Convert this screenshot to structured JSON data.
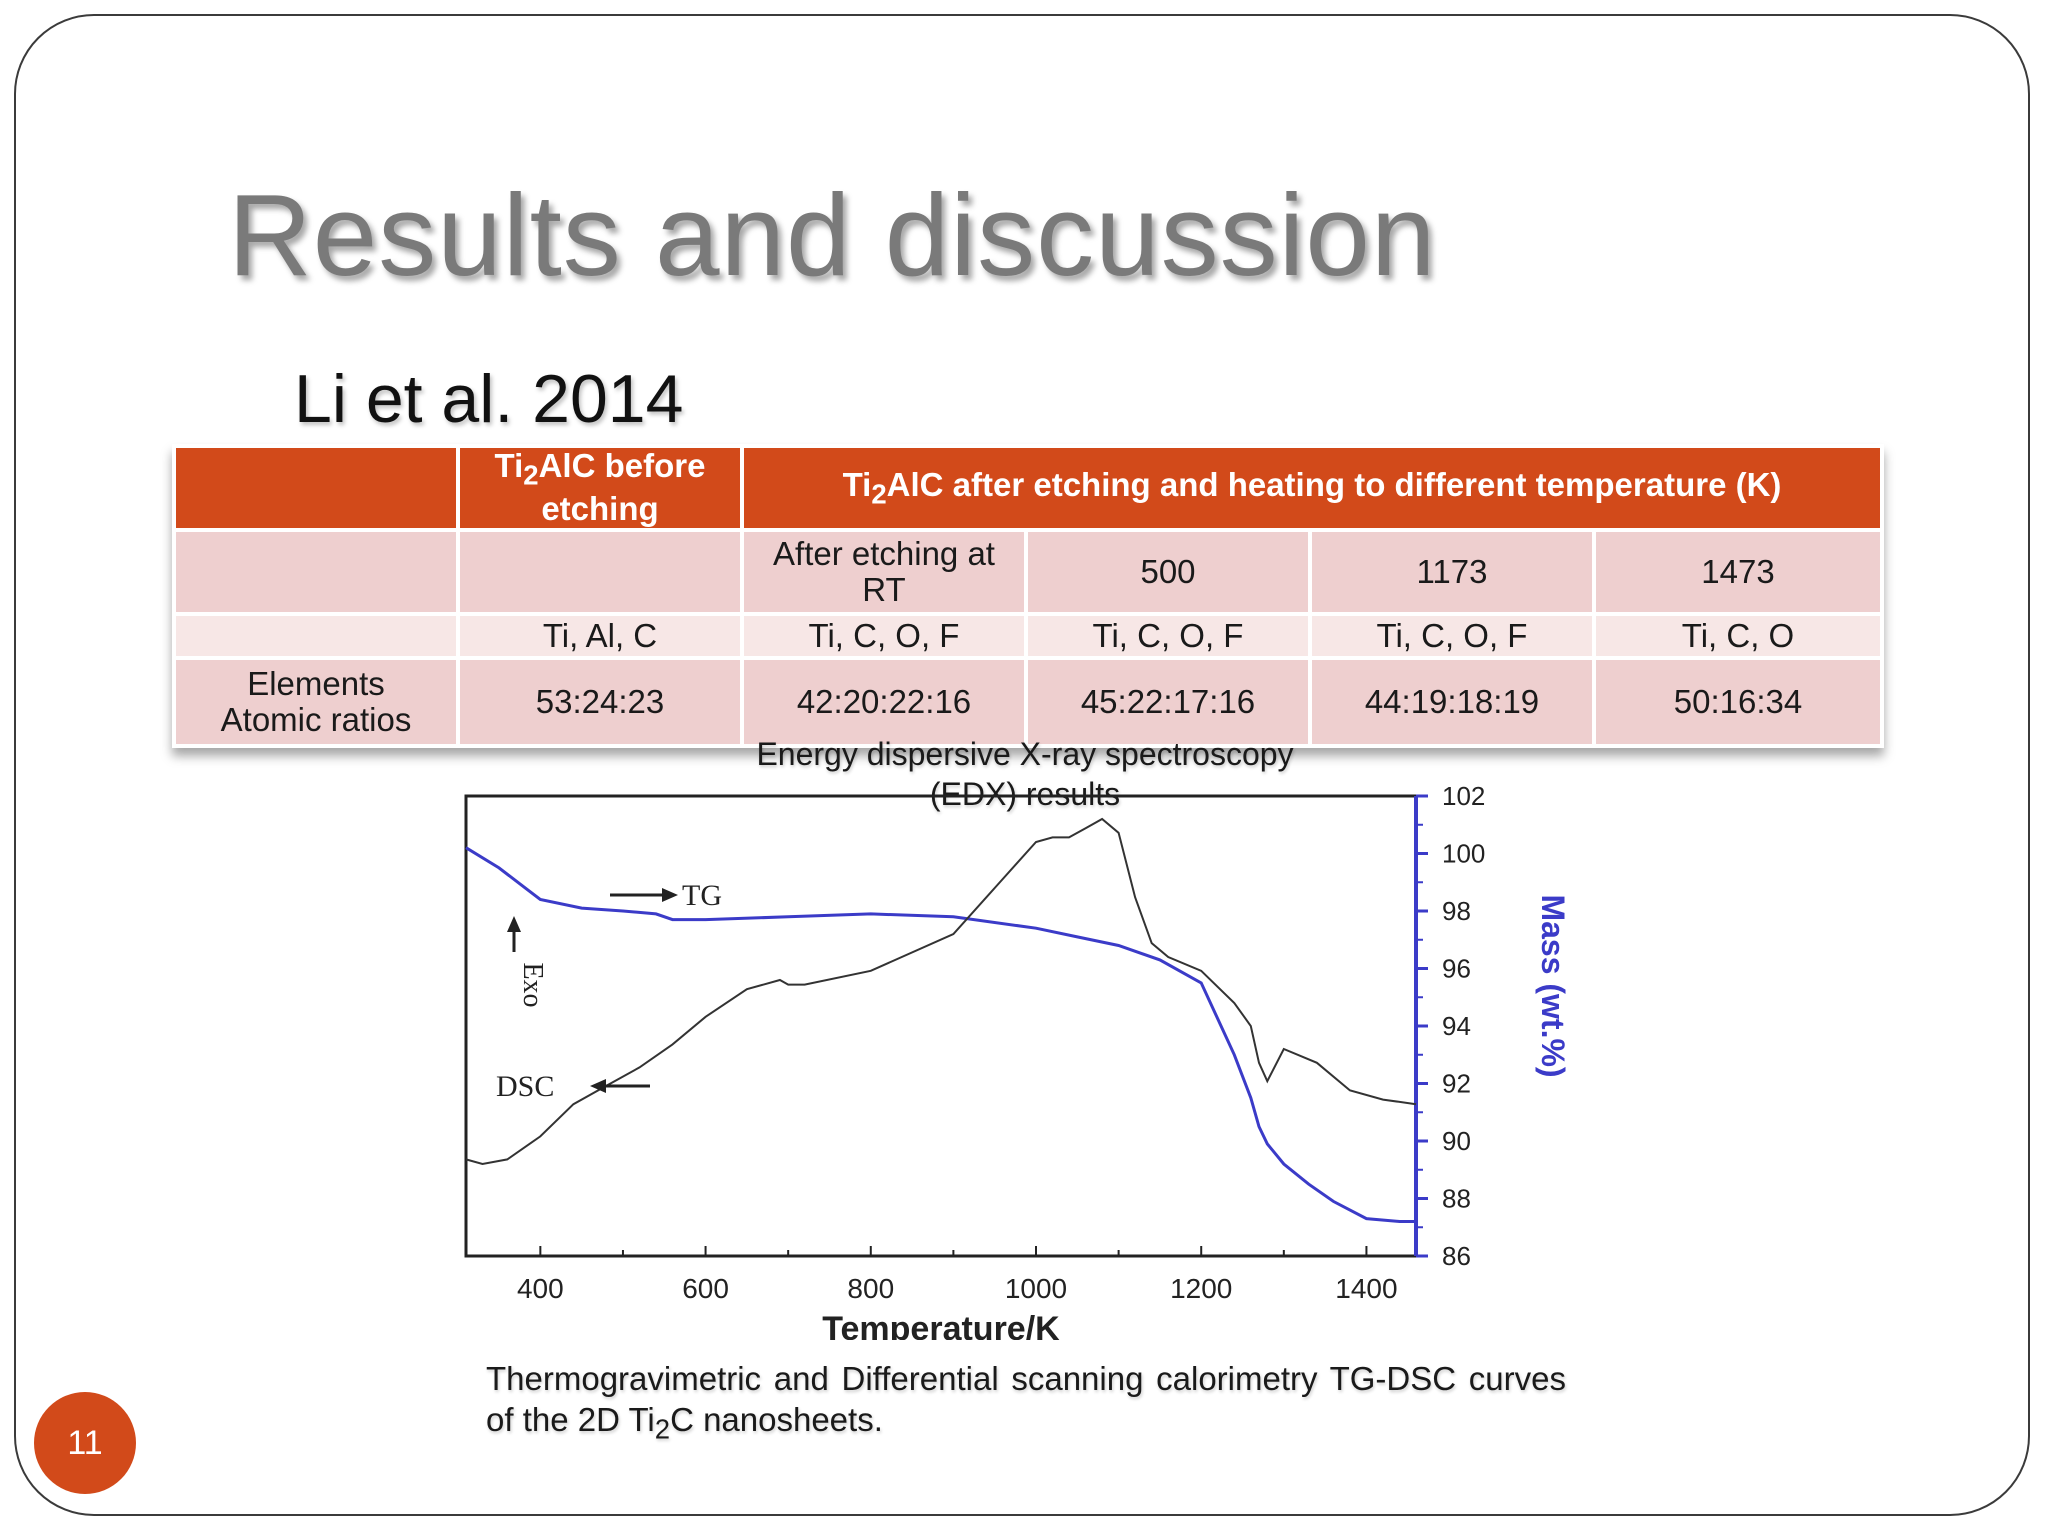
{
  "slide": {
    "title": "Results and discussion",
    "subtitle": "Li et al. 2014",
    "page_number": "11"
  },
  "table": {
    "header": {
      "before_prefix": "Ti",
      "before_sub": "2",
      "before_suffix": "AlC before etching",
      "after_prefix": "Ti",
      "after_sub": "2",
      "after_suffix": "AlC after etching and heating to different temperature (K)"
    },
    "conditions": [
      "",
      "",
      "After etching at RT",
      "500",
      "1173",
      "1473"
    ],
    "elements": [
      "",
      "Ti, Al, C",
      "Ti, C, O, F",
      "Ti, C, O, F",
      "Ti, C, O, F",
      "Ti, C, O"
    ],
    "row_label_line1": "Elements",
    "row_label_line2": "Atomic ratios",
    "ratios": [
      "53:24:23",
      "42:20:22:16",
      "45:22:17:16",
      "44:19:18:19",
      "50:16:34"
    ],
    "caption": "Energy dispersive X-ray spectroscopy (EDX) results"
  },
  "figure_caption": {
    "part1": "Thermogravimetric and Differential scanning calorimetry TG-DSC curves of the 2D Ti",
    "sub": "2",
    "part2": "C nanosheets."
  },
  "colors": {
    "accent": "#d24a1a",
    "tg_line": "#3b3bc8",
    "dsc_line": "#333333",
    "right_axis": "#3b3bc8"
  },
  "chart_data": {
    "type": "line",
    "xlabel": "Temperature/K",
    "ylabel_left": "Exo",
    "ylabel_right": "Mass (wt.%)",
    "xlim": [
      310,
      1460
    ],
    "x_ticks": [
      400,
      600,
      800,
      1000,
      1200,
      1400
    ],
    "y2lim": [
      86,
      102
    ],
    "y2_ticks": [
      86,
      88,
      90,
      92,
      94,
      96,
      98,
      100,
      102
    ],
    "annotations": [
      {
        "text": "TG",
        "arrow": "right"
      },
      {
        "text": "DSC",
        "arrow": "left"
      },
      {
        "text": "Exo",
        "arrow": "up"
      }
    ],
    "series": [
      {
        "name": "TG",
        "axis": "right",
        "color": "#3b3bc8",
        "x": [
          310,
          350,
          400,
          450,
          500,
          540,
          560,
          600,
          700,
          800,
          900,
          1000,
          1050,
          1100,
          1150,
          1200,
          1240,
          1260,
          1270,
          1280,
          1300,
          1330,
          1360,
          1400,
          1440,
          1460
        ],
        "y": [
          100.2,
          99.5,
          98.4,
          98.1,
          98.0,
          97.9,
          97.7,
          97.7,
          97.8,
          97.9,
          97.8,
          97.4,
          97.1,
          96.8,
          96.3,
          95.5,
          93.0,
          91.5,
          90.5,
          89.9,
          89.2,
          88.5,
          87.9,
          87.3,
          87.2,
          87.2
        ]
      },
      {
        "name": "DSC",
        "axis": "left",
        "color": "#333333",
        "x": [
          310,
          330,
          360,
          400,
          440,
          480,
          520,
          560,
          600,
          650,
          690,
          700,
          720,
          800,
          900,
          950,
          1000,
          1020,
          1040,
          1060,
          1080,
          1100,
          1120,
          1140,
          1160,
          1200,
          1240,
          1260,
          1270,
          1280,
          1300,
          1340,
          1380,
          1420,
          1460
        ],
        "y": [
          0.21,
          0.2,
          0.21,
          0.26,
          0.33,
          0.37,
          0.41,
          0.46,
          0.52,
          0.58,
          0.6,
          0.59,
          0.59,
          0.62,
          0.7,
          0.8,
          0.9,
          0.91,
          0.91,
          0.93,
          0.95,
          0.92,
          0.78,
          0.68,
          0.65,
          0.62,
          0.55,
          0.5,
          0.42,
          0.38,
          0.45,
          0.42,
          0.36,
          0.34,
          0.33
        ]
      }
    ]
  }
}
